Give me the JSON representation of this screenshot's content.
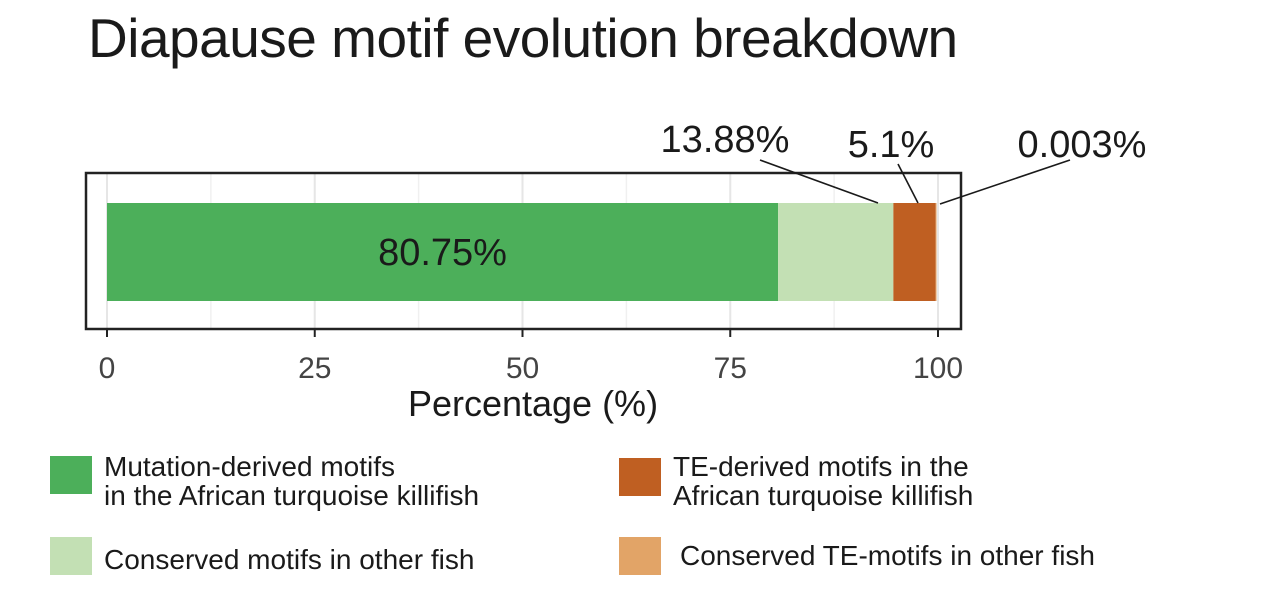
{
  "chart_data": {
    "type": "bar",
    "orientation": "horizontal-stacked",
    "title": "Diapause motif evolution breakdown",
    "xlabel": "Percentage (%)",
    "ylabel": "",
    "xlim": [
      0,
      100
    ],
    "x_ticks": [
      "0",
      "25",
      "50",
      "75",
      "100"
    ],
    "grid": true,
    "legend_position": "bottom",
    "series": [
      {
        "name": "Mutation-derived motifs in the African turquoise killifish",
        "value": 80.75,
        "label": "80.75%",
        "color": "#4caf5a"
      },
      {
        "name": "Conserved motifs in other fish",
        "value": 13.88,
        "label": "13.88%",
        "color": "#c3e0b4"
      },
      {
        "name": "TE-derived motifs in the African turquoise killifish",
        "value": 5.1,
        "label": "5.1%",
        "color": "#bf5f22"
      },
      {
        "name": "Conserved TE-motifs in other fish",
        "value": 0.003,
        "label": "0.003%",
        "color": "#e2a467"
      }
    ]
  },
  "legend": [
    {
      "line1": "Mutation-derived motifs",
      "line2": "in the African turquoise killifish",
      "color": "#4caf5a"
    },
    {
      "line1": "Conserved motifs in other fish",
      "line2": "",
      "color": "#c3e0b4"
    },
    {
      "line1": "TE-derived motifs in the",
      "line2": "African turquoise killifish",
      "color": "#bf5f22"
    },
    {
      "line1": "Conserved TE-motifs in other fish",
      "line2": "",
      "color": "#e2a467"
    }
  ]
}
